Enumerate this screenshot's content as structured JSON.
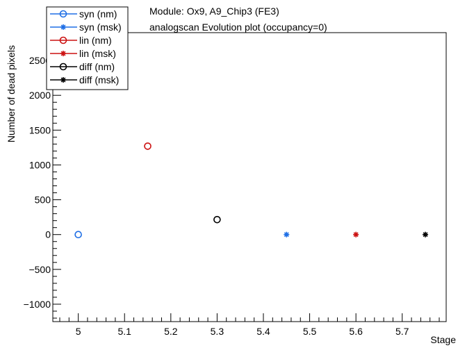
{
  "chart_data": {
    "type": "scatter",
    "title_lines": [
      "Module: Ox9, A9_Chip3 (FE3)",
      "analogscan Evolution plot (occupancy=0)"
    ],
    "xlabel": "Stage",
    "ylabel": "Number of dead pixels",
    "xlim": [
      4.945,
      5.795
    ],
    "ylim": [
      -1250,
      2900
    ],
    "x_ticks": [
      "5",
      "5.1",
      "5.2",
      "5.3",
      "5.4",
      "5.5",
      "5.6",
      "5.7"
    ],
    "y_ticks": [
      "−1000",
      "−500",
      "0",
      "500",
      "1000",
      "1500",
      "2000",
      "2500"
    ],
    "grid": false,
    "legend_position": "top-left",
    "series": [
      {
        "name": "syn (nm)",
        "marker": "open-circle",
        "color": "#1f6fe5",
        "x": [
          5.0
        ],
        "y": [
          0
        ]
      },
      {
        "name": "syn (msk)",
        "marker": "star",
        "color": "#1f6fe5",
        "x": [
          5.45
        ],
        "y": [
          0
        ]
      },
      {
        "name": "lin (nm)",
        "marker": "open-circle",
        "color": "#cc1111",
        "x": [
          5.15
        ],
        "y": [
          1270
        ]
      },
      {
        "name": "lin (msk)",
        "marker": "star",
        "color": "#cc1111",
        "x": [
          5.6
        ],
        "y": [
          0
        ]
      },
      {
        "name": "diff (nm)",
        "marker": "open-circle",
        "color": "#000000",
        "x": [
          5.3
        ],
        "y": [
          215
        ]
      },
      {
        "name": "diff (msk)",
        "marker": "star",
        "color": "#000000",
        "x": [
          5.75
        ],
        "y": [
          0
        ]
      }
    ]
  }
}
